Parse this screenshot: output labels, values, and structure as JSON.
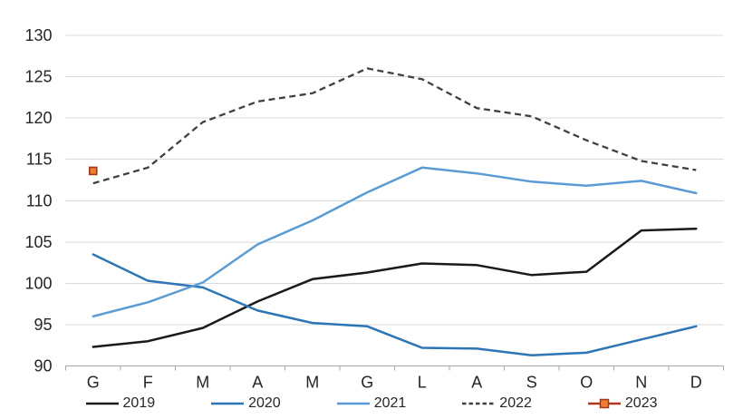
{
  "chart_data": {
    "type": "line",
    "title": "",
    "xlabel": "",
    "ylabel": "",
    "grid": true,
    "legend_position": "bottom",
    "categories": [
      "G",
      "F",
      "M",
      "A",
      "M",
      "G",
      "L",
      "A",
      "S",
      "O",
      "N",
      "D"
    ],
    "y_axis": {
      "min": 90,
      "max": 130,
      "step": 5,
      "tick_labels": [
        "90",
        "95",
        "100",
        "105",
        "110",
        "115",
        "120",
        "125",
        "130"
      ]
    },
    "series": [
      {
        "name": "2019",
        "color": "#1a1a1a",
        "style": "solid",
        "values": [
          92.3,
          93.0,
          94.6,
          97.8,
          100.5,
          101.3,
          102.4,
          102.2,
          101.0,
          101.4,
          106.4,
          106.6
        ]
      },
      {
        "name": "2020",
        "color": "#2e75b6",
        "style": "solid",
        "values": [
          103.5,
          100.3,
          99.5,
          96.7,
          95.2,
          94.8,
          92.2,
          92.1,
          91.3,
          91.6,
          93.2,
          94.8
        ]
      },
      {
        "name": "2021",
        "color": "#5b9bd5",
        "style": "solid",
        "values": [
          96.0,
          97.7,
          100.1,
          104.7,
          107.6,
          111.0,
          114.0,
          113.3,
          112.3,
          111.8,
          112.4,
          110.9
        ]
      },
      {
        "name": "2022",
        "color": "#404040",
        "style": "dashed",
        "values": [
          112.1,
          114.0,
          119.5,
          122.0,
          123.0,
          126.0,
          124.7,
          121.2,
          120.2,
          117.3,
          114.8,
          113.7
        ]
      },
      {
        "name": "2023",
        "color": "#b03a21",
        "style": "solid",
        "marker": "square",
        "marker_fill": "#ed7d31",
        "marker_stroke": "#9c3a1d",
        "values": [
          113.6
        ]
      }
    ],
    "colors": {
      "background": "#ffffff",
      "gridline": "#d9d9d9",
      "axis_line": "#a6a6a6",
      "tick_text": "#262626"
    }
  }
}
